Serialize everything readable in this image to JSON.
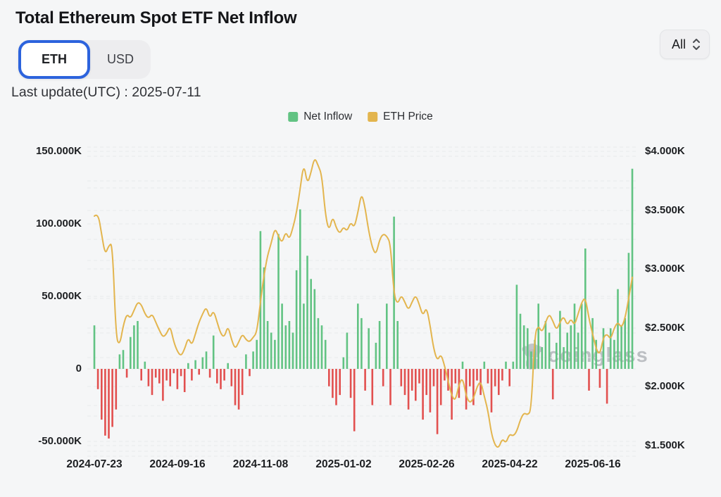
{
  "header": {
    "title": "Total Ethereum Spot ETF Net Inflow",
    "range_selector": "All"
  },
  "toggle": {
    "options": [
      {
        "label": "ETH",
        "active": true
      },
      {
        "label": "USD",
        "active": false
      }
    ],
    "active_border_color": "#2c63dd"
  },
  "last_update": "Last update(UTC) : 2025-07-11",
  "legend": {
    "items": [
      {
        "label": "Net Inflow",
        "color": "#62c383"
      },
      {
        "label": "ETH Price",
        "color": "#e3b54e"
      }
    ]
  },
  "watermark": {
    "label": "coinglass"
  },
  "chart_data": {
    "type": "bar+line combo (daily)",
    "x_range": {
      "start": "2024-07-23",
      "end": "2025-07-11"
    },
    "x_ticks": {
      "labels": [
        "2024-07-23",
        "2024-09-16",
        "2024-11-08",
        "2025-01-02",
        "2025-02-26",
        "2025-04-22",
        "2025-06-16"
      ],
      "px": [
        134,
        252,
        370,
        488,
        606,
        724,
        842
      ]
    },
    "left_axis": {
      "ticks": [
        "150.000K",
        "100.000K",
        "50.000K",
        "0",
        "-50.000K"
      ],
      "values": [
        150,
        100,
        50,
        0,
        -50
      ],
      "grid_values": [
        150,
        125,
        100,
        75,
        50,
        25,
        0,
        -25,
        -50
      ]
    },
    "right_axis": {
      "ticks": [
        "$4.000K",
        "$3.500K",
        "$3.000K",
        "$2.500K",
        "$2.000K",
        "$1.500K"
      ],
      "values": [
        4.0,
        3.5,
        3.0,
        2.5,
        2.0,
        1.5
      ],
      "grid_values": [
        4.0,
        3.75,
        3.5,
        3.25,
        3.0,
        2.75,
        2.5,
        2.25,
        2.0,
        1.75,
        1.5
      ]
    },
    "series": [
      {
        "name": "Net Inflow",
        "type": "bar",
        "unit": "K ETH",
        "color_pos": "#62c383",
        "color_neg": "#e2504f",
        "values": [
          30,
          -14,
          -35,
          -46,
          -48,
          -40,
          -28,
          10,
          13,
          -6,
          22,
          30,
          33,
          -8,
          5,
          -12,
          -18,
          -6,
          -10,
          -22,
          -8,
          -12,
          -3,
          -14,
          -5,
          -16,
          4,
          -8,
          6,
          -4,
          8,
          12,
          -6,
          23,
          -10,
          -14,
          -8,
          4,
          -12,
          -25,
          -28,
          -18,
          10,
          -5,
          12,
          20,
          95,
          70,
          33,
          25,
          20,
          93,
          45,
          30,
          33,
          25,
          68,
          110,
          45,
          78,
          62,
          55,
          35,
          30,
          20,
          -12,
          -20,
          -25,
          -18,
          8,
          25,
          -20,
          -43,
          45,
          35,
          -15,
          28,
          -25,
          18,
          33,
          -12,
          45,
          -25,
          105,
          33,
          -12,
          -18,
          -28,
          -15,
          -22,
          -10,
          -35,
          -18,
          -30,
          -12,
          -45,
          -25,
          -8,
          -15,
          -35,
          -10,
          -20,
          5,
          -28,
          -12,
          -25,
          -8,
          -18,
          5,
          -10,
          -30,
          -12,
          -18,
          -8,
          5,
          -12,
          5,
          58,
          38,
          30,
          28,
          12,
          20,
          45,
          15,
          33,
          25,
          -21,
          18,
          40,
          15,
          25,
          30,
          45,
          25,
          45,
          83,
          -15,
          35,
          20,
          -13,
          28,
          -24,
          28,
          20,
          55,
          30,
          35,
          80,
          138
        ]
      },
      {
        "name": "ETH Price",
        "type": "line",
        "unit": "$K",
        "color": "#e3b54e",
        "values": [
          3.45,
          3.48,
          3.3,
          3.12,
          3.2,
          3.22,
          2.42,
          2.35,
          2.52,
          2.62,
          2.58,
          2.65,
          2.72,
          2.7,
          2.62,
          2.58,
          2.62,
          2.55,
          2.48,
          2.42,
          2.45,
          2.52,
          2.38,
          2.3,
          2.26,
          2.32,
          2.42,
          2.35,
          2.45,
          2.55,
          2.62,
          2.68,
          2.58,
          2.65,
          2.55,
          2.45,
          2.42,
          2.52,
          2.4,
          2.32,
          2.38,
          2.45,
          2.4,
          2.38,
          2.42,
          2.46,
          2.72,
          2.95,
          3.12,
          3.22,
          3.35,
          3.28,
          3.22,
          3.32,
          3.25,
          3.35,
          3.48,
          3.68,
          3.9,
          3.72,
          3.82,
          3.95,
          3.88,
          3.8,
          3.46,
          3.32,
          3.45,
          3.35,
          3.3,
          3.36,
          3.32,
          3.4,
          3.35,
          3.48,
          3.65,
          3.52,
          3.32,
          3.18,
          3.12,
          3.25,
          3.3,
          3.28,
          3.22,
          2.78,
          2.7,
          2.78,
          2.72,
          2.65,
          2.72,
          2.78,
          2.7,
          2.6,
          2.68,
          2.52,
          2.32,
          2.22,
          2.28,
          2.18,
          2.05,
          1.92,
          1.88,
          2.02,
          2.08,
          1.92,
          1.86,
          1.9,
          2.0,
          2.05,
          1.92,
          1.8,
          1.6,
          1.5,
          1.48,
          1.56,
          1.52,
          1.6,
          1.58,
          1.62,
          1.72,
          1.78,
          1.76,
          1.8,
          2.45,
          2.52,
          2.46,
          2.55,
          2.62,
          2.56,
          2.48,
          2.55,
          2.6,
          2.52,
          2.58,
          2.52,
          2.62,
          2.72,
          2.76,
          2.58,
          2.45,
          2.32,
          2.27,
          2.42,
          2.45,
          2.4,
          2.5,
          2.55,
          2.5,
          2.58,
          2.75,
          2.93
        ]
      }
    ],
    "layout": {
      "grid": "dashed",
      "legend_position": "top-center"
    }
  }
}
